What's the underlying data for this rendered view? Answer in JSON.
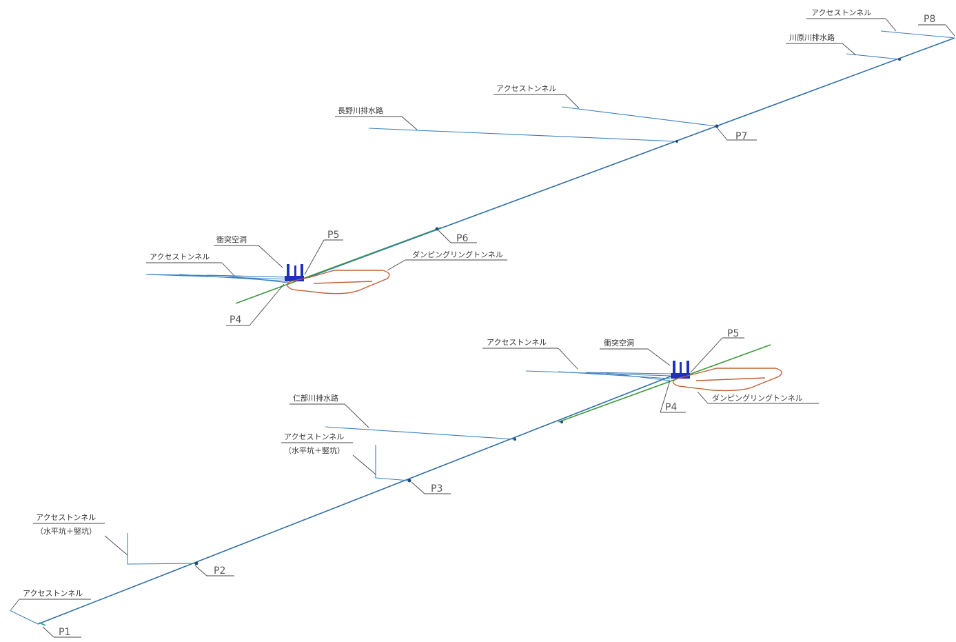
{
  "colors": {
    "tunnel": "#2f6fa6",
    "branch": "#3b7fbf",
    "green_segment": "#3a9a3a",
    "damping_ring": "#c0603a",
    "chamber": "#1f2fbf",
    "leader": "#444444"
  },
  "upper": {
    "p8": "P8",
    "p7": "P7",
    "p6": "P6",
    "p5": "P5",
    "p4": "P4",
    "access_top": "アクセストンネル",
    "kawara_drain": "川原川排水路",
    "access_mid": "アクセストンネル",
    "nagano_drain": "長野川排水路",
    "collision_chamber": "衝突空洞",
    "access_left": "アクセストンネル",
    "damping_ring": "ダンピングリングトンネル"
  },
  "lower": {
    "p5": "P5",
    "p4": "P4",
    "p3": "P3",
    "p2": "P2",
    "p1": "P1",
    "access_right": "アクセストンネル",
    "collision_chamber": "衝突空洞",
    "damping_ring": "ダンピングリングトンネル",
    "nibe_drain": "仁部川排水路",
    "access_shaft_1": "アクセストンネル",
    "access_shaft_1_note": "（水平坑＋竪坑）",
    "access_shaft_2": "アクセストンネル",
    "access_shaft_2_note": "（水平坑＋竪坑）",
    "access_bottom": "アクセストンネル"
  }
}
